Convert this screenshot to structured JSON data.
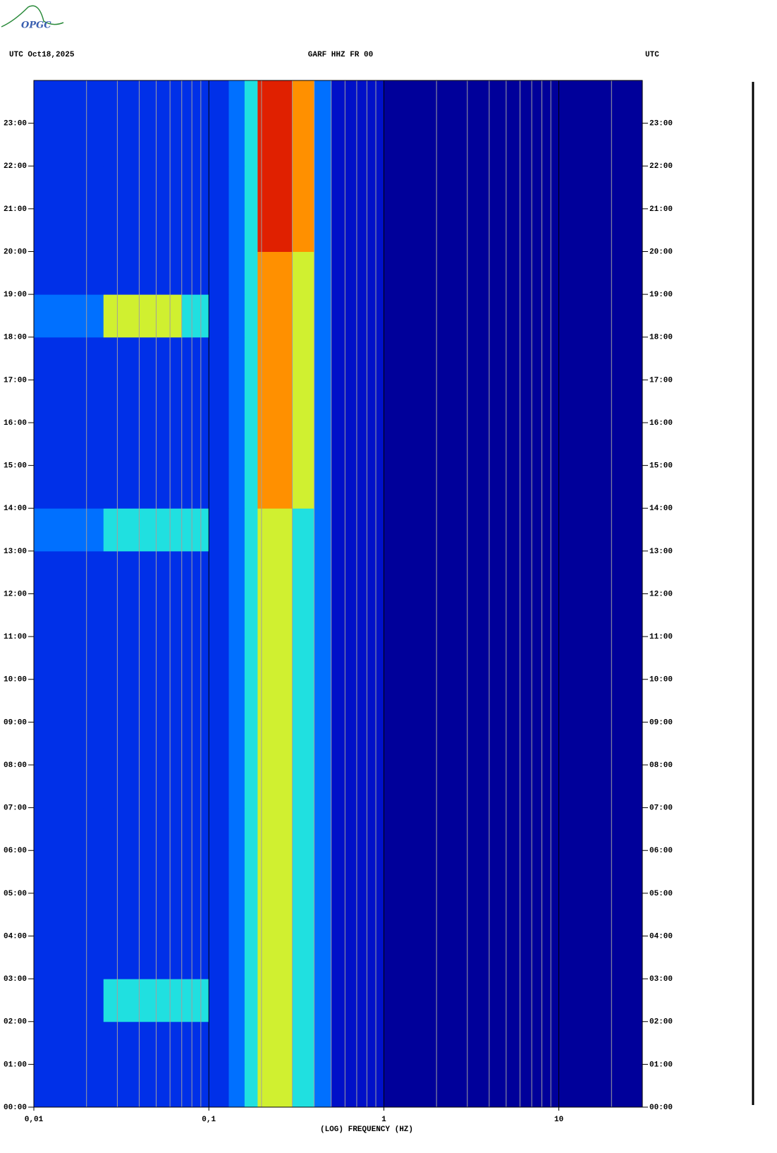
{
  "chart_data": {
    "type": "spectrogram",
    "logo": "OPGC",
    "title_left": "UTC  Oct18,2025",
    "title": "GARF HHZ FR 00",
    "title_right": "UTC",
    "xlabel": "(LOG) FREQUENCY (HZ)",
    "xscale": "log",
    "xlim": [
      0.01,
      30
    ],
    "xticks": [
      {
        "value": 0.01,
        "label": "0,01"
      },
      {
        "value": 0.1,
        "label": "0,1"
      },
      1,
      10
    ],
    "xminorticks": [
      0.02,
      0.03,
      0.04,
      0.05,
      0.06,
      0.07,
      0.08,
      0.09,
      0.2,
      0.3,
      0.4,
      0.5,
      0.6,
      0.7,
      0.8,
      0.9,
      2,
      3,
      4,
      5,
      6,
      7,
      8,
      9,
      20
    ],
    "ylim": [
      0,
      24
    ],
    "yticks": [
      {
        "value": 0,
        "label": "00:00"
      },
      {
        "value": 1,
        "label": "01:00"
      },
      {
        "value": 2,
        "label": "02:00"
      },
      {
        "value": 3,
        "label": "03:00"
      },
      {
        "value": 4,
        "label": "04:00"
      },
      {
        "value": 5,
        "label": "05:00"
      },
      {
        "value": 6,
        "label": "06:00"
      },
      {
        "value": 7,
        "label": "07:00"
      },
      {
        "value": 8,
        "label": "08:00"
      },
      {
        "value": 9,
        "label": "09:00"
      },
      {
        "value": 10,
        "label": "10:00"
      },
      {
        "value": 11,
        "label": "11:00"
      },
      {
        "value": 12,
        "label": "12:00"
      },
      {
        "value": 13,
        "label": "13:00"
      },
      {
        "value": 14,
        "label": "14:00"
      },
      {
        "value": 15,
        "label": "15:00"
      },
      {
        "value": 16,
        "label": "16:00"
      },
      {
        "value": 17,
        "label": "17:00"
      },
      {
        "value": 18,
        "label": "18:00"
      },
      {
        "value": 19,
        "label": "19:00"
      },
      {
        "value": 20,
        "label": "20:00"
      },
      {
        "value": 21,
        "label": "21:00"
      },
      {
        "value": 22,
        "label": "22:00"
      },
      {
        "value": 23,
        "label": "23:00"
      }
    ],
    "xbins": [
      0.01,
      0.025,
      0.07,
      0.1,
      0.13,
      0.16,
      0.19,
      0.3,
      0.4,
      0.5,
      1,
      30
    ],
    "ybins": [
      0,
      1,
      2,
      3,
      4,
      5,
      6,
      7,
      8,
      9,
      10,
      11,
      12,
      13,
      14,
      15,
      16,
      17,
      18,
      19,
      20,
      21,
      22,
      23,
      24
    ],
    "colorscale": [
      "#00009a",
      "#0010c8",
      "#0030e8",
      "#0070ff",
      "#20e0e0",
      "#d0f030",
      "#ff9000",
      "#e02000"
    ],
    "z": [
      [
        2,
        2,
        2,
        2,
        3,
        4,
        5,
        4,
        3,
        1,
        0
      ],
      [
        2,
        2,
        2,
        2,
        3,
        4,
        5,
        4,
        3,
        1,
        0
      ],
      [
        2,
        4,
        4,
        2,
        3,
        4,
        5,
        4,
        3,
        1,
        0
      ],
      [
        2,
        2,
        2,
        2,
        3,
        4,
        5,
        4,
        3,
        1,
        0
      ],
      [
        2,
        2,
        2,
        2,
        3,
        4,
        5,
        4,
        3,
        1,
        0
      ],
      [
        2,
        2,
        2,
        2,
        3,
        4,
        5,
        4,
        3,
        1,
        0
      ],
      [
        2,
        2,
        2,
        2,
        3,
        4,
        5,
        4,
        3,
        1,
        0
      ],
      [
        2,
        2,
        2,
        2,
        3,
        4,
        5,
        4,
        3,
        1,
        0
      ],
      [
        2,
        2,
        2,
        2,
        3,
        4,
        5,
        4,
        3,
        1,
        0
      ],
      [
        2,
        2,
        2,
        2,
        3,
        4,
        5,
        4,
        3,
        1,
        0
      ],
      [
        2,
        2,
        2,
        2,
        3,
        4,
        5,
        4,
        3,
        1,
        0
      ],
      [
        2,
        2,
        2,
        2,
        3,
        4,
        5,
        4,
        3,
        1,
        0
      ],
      [
        2,
        2,
        2,
        2,
        3,
        4,
        5,
        4,
        3,
        1,
        0
      ],
      [
        3,
        4,
        4,
        2,
        3,
        4,
        5,
        4,
        3,
        1,
        0
      ],
      [
        2,
        2,
        2,
        2,
        3,
        4,
        6,
        5,
        3,
        1,
        0
      ],
      [
        2,
        2,
        2,
        2,
        3,
        4,
        6,
        5,
        3,
        1,
        0
      ],
      [
        2,
        2,
        2,
        2,
        3,
        4,
        6,
        5,
        3,
        1,
        0
      ],
      [
        2,
        2,
        2,
        2,
        3,
        4,
        6,
        5,
        3,
        1,
        0
      ],
      [
        3,
        5,
        4,
        2,
        3,
        4,
        6,
        5,
        3,
        1,
        0
      ],
      [
        2,
        2,
        2,
        2,
        3,
        4,
        6,
        5,
        3,
        1,
        0
      ],
      [
        2,
        2,
        2,
        2,
        3,
        4,
        7,
        6,
        3,
        1,
        0
      ],
      [
        2,
        2,
        2,
        2,
        3,
        4,
        7,
        6,
        3,
        1,
        0
      ],
      [
        2,
        2,
        2,
        2,
        3,
        4,
        7,
        6,
        3,
        1,
        0
      ],
      [
        2,
        2,
        2,
        2,
        3,
        4,
        7,
        6,
        3,
        1,
        0
      ]
    ]
  }
}
